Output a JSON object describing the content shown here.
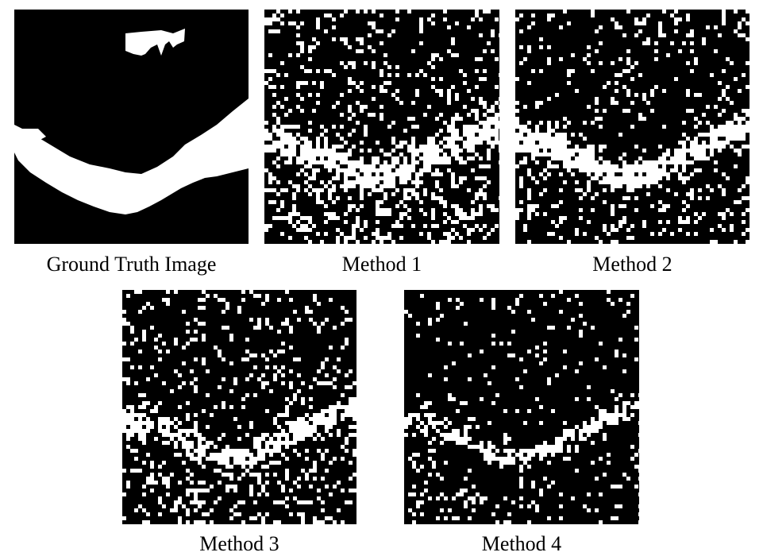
{
  "figure": {
    "background_color": "#000000",
    "foreground_color": "#ffffff",
    "panels": [
      {
        "id": "gt",
        "caption": "Ground Truth Image"
      },
      {
        "id": "m1",
        "caption": "Method 1"
      },
      {
        "id": "m2",
        "caption": "Method 2"
      },
      {
        "id": "m3",
        "caption": "Method 3"
      },
      {
        "id": "m4",
        "caption": "Method 4"
      }
    ]
  }
}
